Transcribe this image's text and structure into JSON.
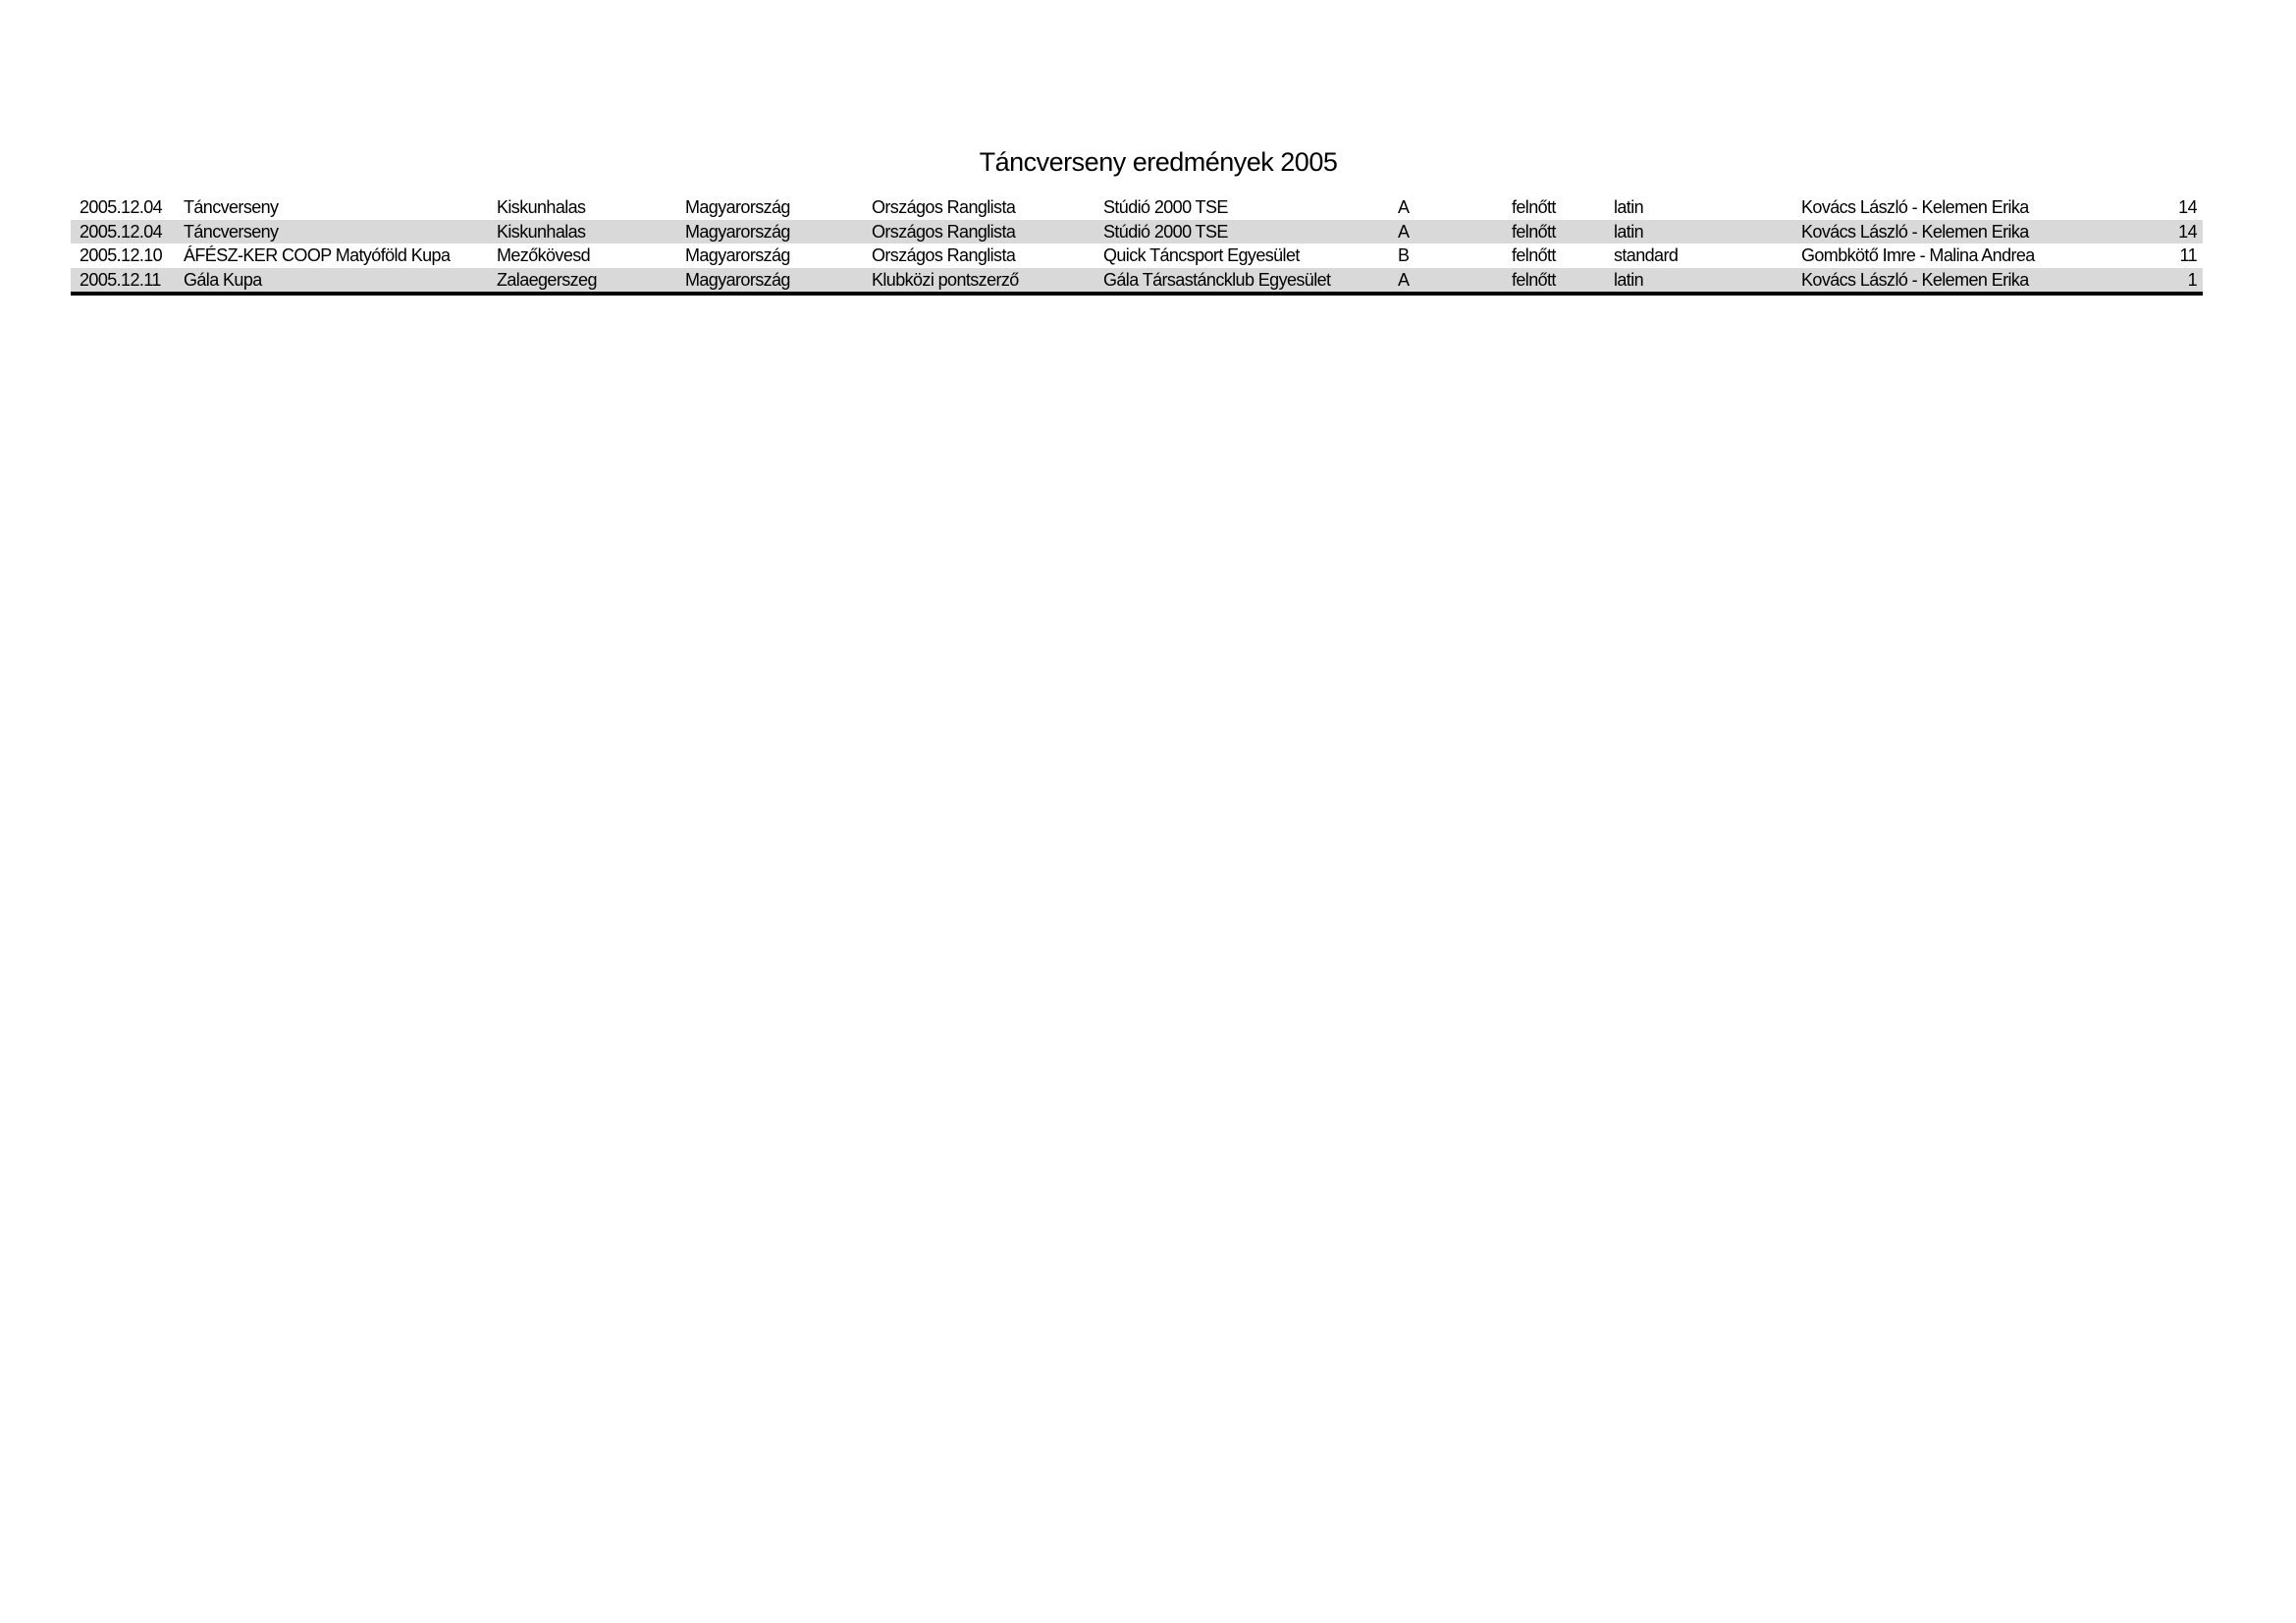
{
  "title": "Táncverseny eredmények 2005",
  "rows": [
    [
      "2005.12.04",
      "Táncverseny",
      "Kiskunhalas",
      "Magyarország",
      "Országos Ranglista",
      "Stúdió 2000 TSE",
      "A",
      "felnőtt",
      "latin",
      "Kovács László - Kelemen Erika",
      "14"
    ],
    [
      "2005.12.04",
      "Táncverseny",
      "Kiskunhalas",
      "Magyarország",
      "Országos Ranglista",
      "Stúdió 2000 TSE",
      "A",
      "felnőtt",
      "latin",
      "Kovács László - Kelemen Erika",
      "14"
    ],
    [
      "2005.12.10",
      "ÁFÉSZ-KER COOP Matyóföld Kupa",
      "Mezőkövesd",
      "Magyarország",
      "Országos Ranglista",
      "Quick Táncsport Egyesület",
      "B",
      "felnőtt",
      "standard",
      "Gombkötő Imre - Malina Andrea",
      "11"
    ],
    [
      "2005.12.11",
      "Gála Kupa",
      "Zalaegerszeg",
      "Magyarország",
      "Klubközi pontszerző",
      "Gála Társastáncklub Egyesület",
      "A",
      "felnőtt",
      "latin",
      "Kovács László - Kelemen Erika",
      "1"
    ]
  ],
  "colors": {
    "stripe": "#d9d9d9",
    "rule": "#000000"
  }
}
